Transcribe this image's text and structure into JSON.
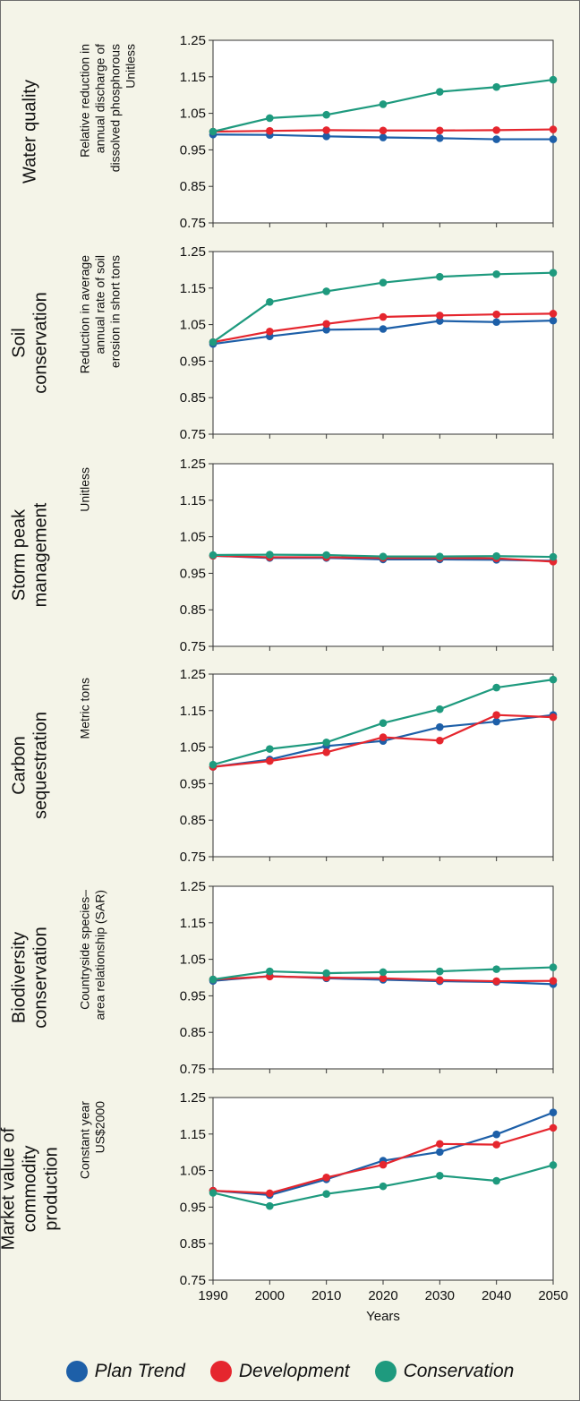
{
  "chart_data": {
    "type": "line",
    "x": [
      1990,
      2000,
      2010,
      2020,
      2030,
      2040,
      2050
    ],
    "xlabel": "Years",
    "x_ticks": [
      "1990",
      "2000",
      "2010",
      "2020",
      "2030",
      "2040",
      "2050"
    ],
    "y_ticks": [
      "0.75",
      "0.85",
      "0.95",
      "1.05",
      "1.15",
      "1.25"
    ],
    "ylim": [
      0.75,
      1.25
    ],
    "grid": false,
    "legend": {
      "placement": "bottom",
      "entries": [
        {
          "name": "Plan Trend",
          "color": "#1d5fa8"
        },
        {
          "name": "Development",
          "color": "#e5262e"
        },
        {
          "name": "Conservation",
          "color": "#1e9a7e"
        }
      ]
    },
    "panels": [
      {
        "title": [
          "Water quality"
        ],
        "ylabel": [
          "Relative reduction in",
          "annual discharge of",
          "dissolved phosphorous",
          "Unitless"
        ],
        "series": [
          {
            "name": "Plan Trend",
            "values": [
              0.992,
              0.991,
              0.987,
              0.984,
              0.982,
              0.979,
              0.979
            ]
          },
          {
            "name": "Development",
            "values": [
              1.0,
              1.002,
              1.004,
              1.003,
              1.003,
              1.004,
              1.006
            ]
          },
          {
            "name": "Conservation",
            "values": [
              1.0,
              1.037,
              1.046,
              1.075,
              1.109,
              1.122,
              1.142
            ]
          }
        ]
      },
      {
        "title": [
          "Soil",
          "conservation"
        ],
        "ylabel": [
          "Reduction in average",
          "annual rate of soil",
          "erosion in short tons"
        ],
        "series": [
          {
            "name": "Plan Trend",
            "values": [
              0.997,
              1.018,
              1.036,
              1.038,
              1.06,
              1.057,
              1.061
            ]
          },
          {
            "name": "Development",
            "values": [
              1.002,
              1.031,
              1.052,
              1.071,
              1.075,
              1.078,
              1.08
            ]
          },
          {
            "name": "Conservation",
            "values": [
              1.002,
              1.112,
              1.141,
              1.165,
              1.181,
              1.188,
              1.192
            ]
          }
        ]
      },
      {
        "title": [
          "Storm peak",
          "management"
        ],
        "ylabel": [
          "Unitless"
        ],
        "series": [
          {
            "name": "Plan Trend",
            "values": [
              0.998,
              0.992,
              0.992,
              0.988,
              0.988,
              0.987,
              0.984
            ]
          },
          {
            "name": "Development",
            "values": [
              0.998,
              0.994,
              0.994,
              0.992,
              0.992,
              0.991,
              0.982
            ]
          },
          {
            "name": "Conservation",
            "values": [
              1.0,
              1.001,
              1.0,
              0.996,
              0.996,
              0.997,
              0.995
            ]
          }
        ]
      },
      {
        "title": [
          "Carbon",
          "sequestration"
        ],
        "ylabel": [
          "Metric tons"
        ],
        "series": [
          {
            "name": "Plan Trend",
            "values": [
              0.996,
              1.016,
              1.053,
              1.067,
              1.105,
              1.12,
              1.138
            ]
          },
          {
            "name": "Development",
            "values": [
              0.996,
              1.012,
              1.036,
              1.077,
              1.068,
              1.138,
              1.132
            ]
          },
          {
            "name": "Conservation",
            "values": [
              1.002,
              1.045,
              1.063,
              1.116,
              1.154,
              1.213,
              1.235
            ]
          }
        ]
      },
      {
        "title": [
          "Biodiversity",
          "conservation"
        ],
        "ylabel": [
          "Countryside species–",
          "area relationship (SAR)"
        ],
        "series": [
          {
            "name": "Plan Trend",
            "values": [
              0.991,
              1.004,
              0.998,
              0.994,
              0.99,
              0.988,
              0.982
            ]
          },
          {
            "name": "Development",
            "values": [
              0.995,
              1.003,
              1.0,
              0.998,
              0.993,
              0.99,
              0.991
            ]
          },
          {
            "name": "Conservation",
            "values": [
              0.995,
              1.017,
              1.012,
              1.015,
              1.017,
              1.023,
              1.028
            ]
          }
        ]
      },
      {
        "title": [
          "Market value of",
          "commodity",
          "production"
        ],
        "ylabel": [
          "Constant year",
          "US$2000"
        ],
        "series": [
          {
            "name": "Plan Trend",
            "values": [
              0.995,
              0.983,
              1.026,
              1.077,
              1.101,
              1.149,
              1.209
            ]
          },
          {
            "name": "Development",
            "values": [
              0.995,
              0.988,
              1.031,
              1.066,
              1.123,
              1.121,
              1.167
            ]
          },
          {
            "name": "Conservation",
            "values": [
              0.989,
              0.953,
              0.986,
              1.007,
              1.036,
              1.022,
              1.065
            ]
          }
        ]
      }
    ]
  }
}
